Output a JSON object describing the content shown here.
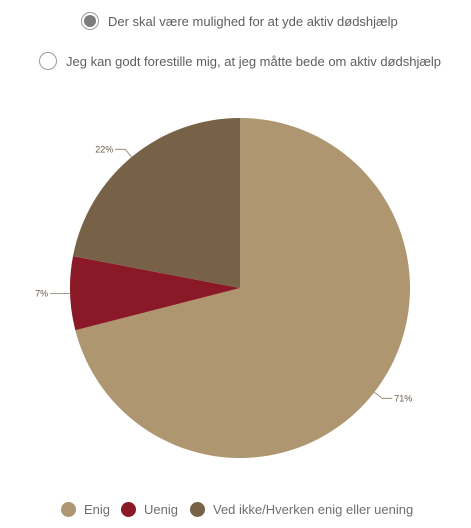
{
  "poll": {
    "options": [
      {
        "label": "Der skal være mulighed for at yde aktiv dødshjælp",
        "selected": true
      },
      {
        "label": "Jeg kan godt forestille mig, at jeg måtte bede om aktiv dødshjælp",
        "selected": false
      }
    ]
  },
  "chart_data": {
    "type": "pie",
    "categories": [
      "Enig",
      "Uenig",
      "Ved ikke/Hverken enig eller uening"
    ],
    "values": [
      71,
      7,
      22
    ],
    "value_labels": [
      "71%",
      "7%",
      "22%"
    ],
    "colors": [
      "#ad9670",
      "#8a1826",
      "#776248"
    ],
    "legend_position": "bottom"
  }
}
